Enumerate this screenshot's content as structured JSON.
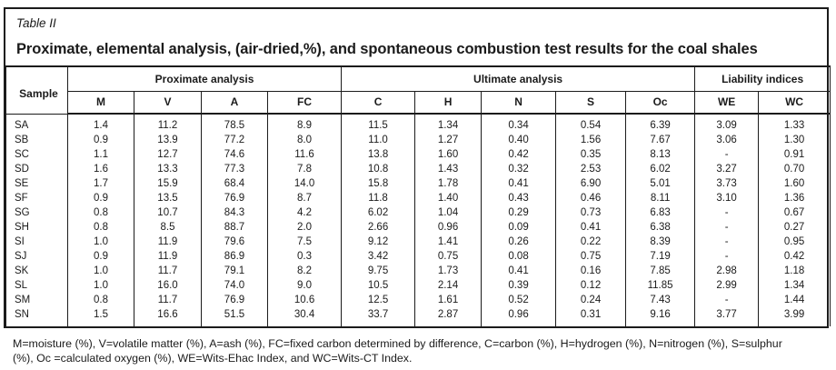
{
  "table_label": "Table II",
  "title": "Proximate, elemental analysis, (air-dried,%), and spontaneous combustion test results for the coal shales",
  "header": {
    "sample": "Sample",
    "groups": [
      {
        "label": "Proximate analysis",
        "span": 4
      },
      {
        "label": "Ultimate analysis",
        "span": 5
      },
      {
        "label": "Liability indices",
        "span": 2
      }
    ],
    "columns": [
      "M",
      "V",
      "A",
      "FC",
      "C",
      "H",
      "N",
      "S",
      "Oc",
      "WE",
      "WC"
    ]
  },
  "rows": [
    {
      "sample": "SA",
      "values": [
        "1.4",
        "11.2",
        "78.5",
        "8.9",
        "11.5",
        "1.34",
        "0.34",
        "0.54",
        "6.39",
        "3.09",
        "1.33"
      ]
    },
    {
      "sample": "SB",
      "values": [
        "0.9",
        "13.9",
        "77.2",
        "8.0",
        "11.0",
        "1.27",
        "0.40",
        "1.56",
        "7.67",
        "3.06",
        "1.30"
      ]
    },
    {
      "sample": "SC",
      "values": [
        "1.1",
        "12.7",
        "74.6",
        "11.6",
        "13.8",
        "1.60",
        "0.42",
        "0.35",
        "8.13",
        "-",
        "0.91"
      ]
    },
    {
      "sample": "SD",
      "values": [
        "1.6",
        "13.3",
        "77.3",
        "7.8",
        "10.8",
        "1.43",
        "0.32",
        "2.53",
        "6.02",
        "3.27",
        "0.70"
      ]
    },
    {
      "sample": "SE",
      "values": [
        "1.7",
        "15.9",
        "68.4",
        "14.0",
        "15.8",
        "1.78",
        "0.41",
        "6.90",
        "5.01",
        "3.73",
        "1.60"
      ]
    },
    {
      "sample": "SF",
      "values": [
        "0.9",
        "13.5",
        "76.9",
        "8.7",
        "11.8",
        "1.40",
        "0.43",
        "0.46",
        "8.11",
        "3.10",
        "1.36"
      ]
    },
    {
      "sample": "SG",
      "values": [
        "0.8",
        "10.7",
        "84.3",
        "4.2",
        "6.02",
        "1.04",
        "0.29",
        "0.73",
        "6.83",
        "-",
        "0.67"
      ]
    },
    {
      "sample": "SH",
      "values": [
        "0.8",
        "8.5",
        "88.7",
        "2.0",
        "2.66",
        "0.96",
        "0.09",
        "0.41",
        "6.38",
        "-",
        "0.27"
      ]
    },
    {
      "sample": "SI",
      "values": [
        "1.0",
        "11.9",
        "79.6",
        "7.5",
        "9.12",
        "1.41",
        "0.26",
        "0.22",
        "8.39",
        "-",
        "0.95"
      ]
    },
    {
      "sample": "SJ",
      "values": [
        "0.9",
        "11.9",
        "86.9",
        "0.3",
        "3.42",
        "0.75",
        "0.08",
        "0.75",
        "7.19",
        "-",
        "0.42"
      ]
    },
    {
      "sample": "SK",
      "values": [
        "1.0",
        "11.7",
        "79.1",
        "8.2",
        "9.75",
        "1.73",
        "0.41",
        "0.16",
        "7.85",
        "2.98",
        "1.18"
      ]
    },
    {
      "sample": "SL",
      "values": [
        "1.0",
        "16.0",
        "74.0",
        "9.0",
        "10.5",
        "2.14",
        "0.39",
        "0.12",
        "11.85",
        "2.99",
        "1.34"
      ]
    },
    {
      "sample": "SM",
      "values": [
        "0.8",
        "11.7",
        "76.9",
        "10.6",
        "12.5",
        "1.61",
        "0.52",
        "0.24",
        "7.43",
        "-",
        "1.44"
      ]
    },
    {
      "sample": "SN",
      "values": [
        "1.5",
        "16.6",
        "51.5",
        "30.4",
        "33.7",
        "2.87",
        "0.96",
        "0.31",
        "9.16",
        "3.77",
        "3.99"
      ]
    }
  ],
  "footnote": {
    "line1": "M=moisture (%), V=volatile matter (%), A=ash (%), FC=fixed carbon determined by difference, C=carbon (%), H=hydrogen (%), N=nitrogen (%), S=sulphur",
    "line2": "(%), Oc =calculated oxygen (%), WE=Wits-Ehac Index, and WC=Wits-CT Index."
  }
}
